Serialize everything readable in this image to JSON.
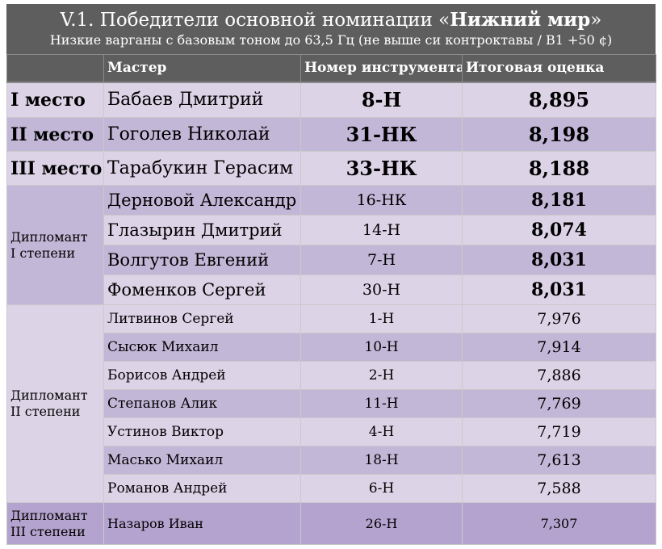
{
  "title": {
    "prefix": "V.1. Победители основной номинации «",
    "bold": "Нижний мир",
    "suffix": "»",
    "subtitle": "Низкие варганы с базовым тоном до 63,5 Гц (не выше си контроктавы / B1 +50 ¢)"
  },
  "headers": [
    "",
    "Мастер",
    "Номер инструмента",
    "Итоговая оценка"
  ],
  "top": [
    {
      "place": "I место",
      "master": "Бабаев Дмитрий",
      "number": "8-Н",
      "score": "8,895"
    },
    {
      "place": "II место",
      "master": "Гоголев Николай",
      "number": "31-НК",
      "score": "8,198"
    },
    {
      "place": "III место",
      "master": "Тарабукин Герасим",
      "number": "33-НК",
      "score": "8,188"
    }
  ],
  "diploma1": {
    "label": [
      "Дипломант",
      "I степени"
    ],
    "rows": [
      {
        "master": "Дерновой Александр",
        "number": "16-НК",
        "score": "8,181"
      },
      {
        "master": "Глазырин Дмитрий",
        "number": "14-Н",
        "score": "8,074"
      },
      {
        "master": "Волгутов Евгений",
        "number": "7-Н",
        "score": "8,031"
      },
      {
        "master": "Фоменков Сергей",
        "number": "30-Н",
        "score": "8,031"
      }
    ]
  },
  "diploma2": {
    "label": [
      "Дипломант",
      "II степени"
    ],
    "rows": [
      {
        "master": "Литвинов Сергей",
        "number": "1-Н",
        "score": "7,976"
      },
      {
        "master": "Сысюк Михаил",
        "number": "10-Н",
        "score": "7,914"
      },
      {
        "master": "Борисов Андрей",
        "number": "2-Н",
        "score": "7,886"
      },
      {
        "master": "Степанов Алик",
        "number": "11-Н",
        "score": "7,769"
      },
      {
        "master": "Устинов Виктор",
        "number": "4-Н",
        "score": "7,719"
      },
      {
        "master": "Масько Михаил",
        "number": "18-Н",
        "score": "7,613"
      },
      {
        "master": "Романов Андрей",
        "number": "6-Н",
        "score": "7,588"
      }
    ]
  },
  "diploma3": {
    "label": [
      "Дипломант",
      "III степени"
    ],
    "rows": [
      {
        "master": "Назаров Иван",
        "number": "26-Н",
        "score": "7,307"
      }
    ]
  },
  "colors": {
    "header": "#5e5e5e",
    "light_row": "#ddd3e7",
    "mid_row": "#c3b7d8",
    "deep_row": "#b5a3cf"
  }
}
